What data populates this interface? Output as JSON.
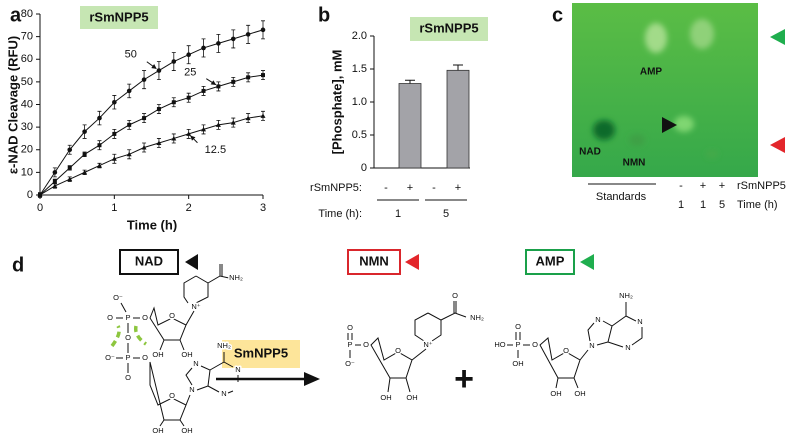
{
  "chart_data": [
    {
      "type": "line",
      "panel_label": "a",
      "badge": "rSmNPP5",
      "xlabel": "Time (h)",
      "ylabel": "ε-NAD Cleavage (RFU)",
      "x": [
        0,
        0.2,
        0.4,
        0.6,
        0.8,
        1.0,
        1.2,
        1.4,
        1.6,
        1.8,
        2.0,
        2.2,
        2.4,
        2.6,
        2.8,
        3.0
      ],
      "xlim": [
        0,
        3
      ],
      "xticks": [
        0,
        1,
        2,
        3
      ],
      "ylim": [
        0,
        80
      ],
      "yticks": [
        0,
        10,
        20,
        30,
        40,
        50,
        60,
        70,
        80
      ],
      "series": [
        {
          "name": "50",
          "color": "#111111",
          "marker": "circle",
          "values": [
            0,
            10,
            20,
            28,
            34,
            41,
            46,
            51,
            55,
            59,
            62,
            65,
            67,
            69,
            71,
            73
          ],
          "errors": [
            1,
            2,
            2,
            3,
            3,
            3,
            3,
            4,
            4,
            4,
            4,
            4,
            4,
            4,
            4,
            4
          ]
        },
        {
          "name": "25",
          "color": "#111111",
          "marker": "square",
          "values": [
            0,
            6,
            12,
            18,
            22,
            27,
            31,
            34,
            38,
            41,
            43,
            46,
            48,
            50,
            52,
            53
          ],
          "errors": [
            1,
            1,
            1,
            1,
            2,
            2,
            2,
            2,
            2,
            2,
            2,
            2,
            2,
            2,
            2,
            2
          ]
        },
        {
          "name": "12.5",
          "color": "#111111",
          "marker": "triangle",
          "values": [
            0,
            4,
            7,
            10,
            13,
            16,
            18,
            21,
            23,
            25,
            27,
            29,
            31,
            32,
            34,
            35
          ],
          "errors": [
            1,
            1,
            1,
            1,
            1,
            2,
            2,
            2,
            2,
            2,
            2,
            2,
            2,
            2,
            2,
            2
          ]
        }
      ]
    },
    {
      "type": "bar",
      "panel_label": "b",
      "badge": "rSmNPP5",
      "ylabel": "[Phosphate], mM",
      "category_label": "rSmNPP5:",
      "categories": [
        "-",
        "+",
        "-",
        "+"
      ],
      "group_label": "Time (h):",
      "groups": [
        "1",
        "5"
      ],
      "values": [
        0,
        1.28,
        0,
        1.48
      ],
      "errors": [
        0,
        0.05,
        0,
        0.08
      ],
      "color": "#a3a3a8",
      "ylim": [
        0,
        2
      ],
      "yticks": [
        0,
        0.5,
        {
          "value": 1,
          "label": "1.0"
        },
        1.5,
        {
          "value": 2,
          "label": "2.0"
        }
      ]
    }
  ],
  "gel": {
    "label": "c",
    "bands": [
      "AMP",
      "NAD",
      "NMN"
    ],
    "standards": "Standards",
    "treatment": [
      "-",
      "+",
      "+"
    ],
    "treatment_label": "rSmNPP5",
    "times": [
      "1",
      "1",
      "5"
    ],
    "time_label": "Time (h)"
  },
  "diagram": {
    "label": "d",
    "substrate": "NAD",
    "enzyme": "SmNPP5",
    "products": [
      "NMN",
      "AMP"
    ],
    "plus": "+",
    "nad_atoms": [
      "O⁻",
      "P",
      "O",
      "O",
      "O",
      "P",
      "O⁻",
      "O",
      "O",
      "N⁺",
      "O",
      "NH₂",
      "OH",
      "OH",
      "NH₂",
      "N",
      "N",
      "N",
      "N",
      "O",
      "OH",
      "OH"
    ],
    "nmn_atoms": [
      "O",
      "P",
      "O⁻",
      "O",
      "O",
      "N⁺",
      "O",
      "NH₂",
      "OH",
      "OH"
    ],
    "amp_atoms": [
      "HO",
      "P",
      "O",
      "O",
      "OH",
      "O",
      "NH₂",
      "N",
      "N",
      "N",
      "N",
      "OH",
      "OH"
    ]
  }
}
